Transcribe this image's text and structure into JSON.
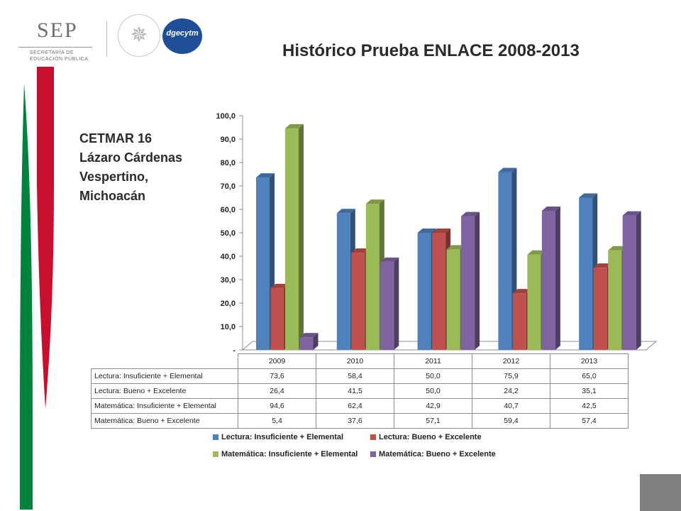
{
  "title": "Histórico Prueba ENLACE 2008-2013",
  "subtitle_lines": [
    "CETMAR 16",
    "Lázaro Cárdenas",
    "Vespertino,",
    "Michoacán"
  ],
  "logos": {
    "sep": "SEP",
    "sep_sub1": "SECRETARÍA DE",
    "sep_sub2": "EDUCACIÓN PÚBLICA",
    "dgecytm": "dgecytm"
  },
  "colors": {
    "green_band": "#00843d",
    "red_band": "#c8102e",
    "series": [
      "#4f81bd",
      "#c0504d",
      "#9bbb59",
      "#8064a2"
    ]
  },
  "chart_data": {
    "type": "bar",
    "categories": [
      "2009",
      "2010",
      "2011",
      "2012",
      "2013"
    ],
    "series": [
      {
        "name": "Lectura: Insuficiente + Elemental",
        "values": [
          73.6,
          58.4,
          50.0,
          75.9,
          65.0
        ],
        "labels": [
          "73,6",
          "58,4",
          "50,0",
          "75,9",
          "65,0"
        ]
      },
      {
        "name": "Lectura: Bueno + Excelente",
        "values": [
          26.4,
          41.5,
          50.0,
          24.2,
          35.1
        ],
        "labels": [
          "26,4",
          "41,5",
          "50,0",
          "24,2",
          "35,1"
        ]
      },
      {
        "name": "Matemática: Insuficiente + Elemental",
        "values": [
          94.6,
          62.4,
          42.9,
          40.7,
          42.5
        ],
        "labels": [
          "94,6",
          "62,4",
          "42,9",
          "40,7",
          "42,5"
        ]
      },
      {
        "name": "Matemática: Bueno + Excelente",
        "values": [
          5.4,
          37.6,
          57.1,
          59.4,
          57.4
        ],
        "labels": [
          "5,4",
          "37,6",
          "57,1",
          "59,4",
          "57,4"
        ]
      }
    ],
    "ylim": [
      0,
      100
    ],
    "yticks": [
      "-",
      "10,0",
      "20,0",
      "30,0",
      "40,0",
      "50,0",
      "60,0",
      "70,0",
      "80,0",
      "90,0",
      "100,0"
    ],
    "legend_position": "bottom",
    "grid": false,
    "style": "3d-column"
  }
}
